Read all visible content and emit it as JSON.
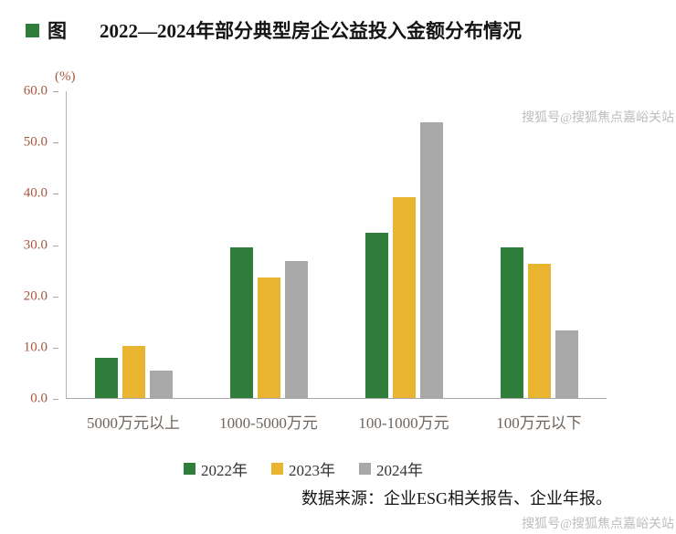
{
  "title": {
    "prefix": "图",
    "text": "2022—2024年部分典型房企公益投入金额分布情况"
  },
  "chart_data": {
    "type": "bar",
    "categories": [
      "5000万元以上",
      "1000-5000万元",
      "100-1000万元",
      "100万元以下"
    ],
    "series": [
      {
        "name": "2022年",
        "color": "#2e7d3b",
        "values": [
          7.9,
          29.5,
          32.4,
          29.5
        ]
      },
      {
        "name": "2023年",
        "color": "#e9b530",
        "values": [
          10.2,
          23.5,
          39.3,
          26.2
        ]
      },
      {
        "name": "2024年",
        "color": "#a8a8a8",
        "values": [
          5.3,
          26.8,
          53.9,
          13.3
        ]
      }
    ],
    "ylabel": "(%)",
    "ylim": [
      0,
      60
    ],
    "yticks": [
      "60.0",
      "50.0",
      "40.0",
      "30.0",
      "20.0",
      "10.0",
      "0.0"
    ],
    "grid": false,
    "legend_position": "bottom"
  },
  "source": "数据来源：企业ESG相关报告、企业年报。",
  "watermark": "搜狐号@搜狐焦点嘉峪关站",
  "colors": {
    "tick_label": "#a6573f",
    "axis": "#a6a6a6",
    "x_label": "#6e655e",
    "title_bullet": "#2e7d3b",
    "watermark": "#bdbdbd"
  }
}
